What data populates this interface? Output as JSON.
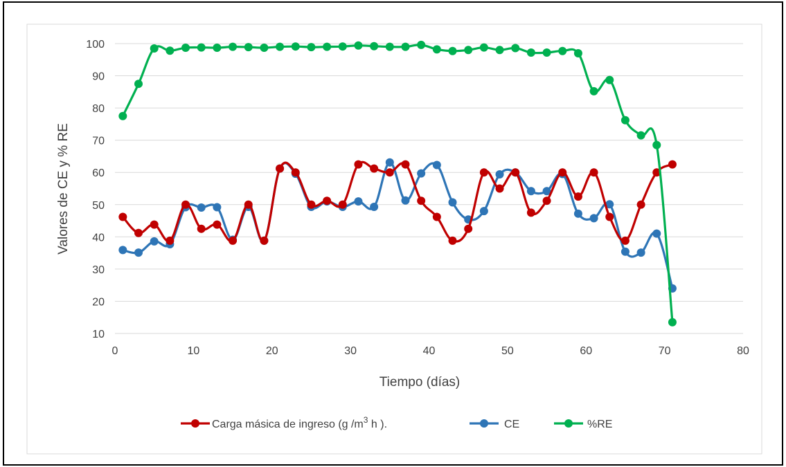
{
  "chart_data": {
    "type": "line",
    "title": "",
    "xlabel": "Tiempo (días)",
    "ylabel": "Valores de CE y % RE",
    "xlim": [
      0,
      80
    ],
    "ylim": [
      10,
      100
    ],
    "xticks": [
      0,
      10,
      20,
      30,
      40,
      50,
      60,
      70,
      80
    ],
    "yticks": [
      10,
      20,
      30,
      40,
      50,
      60,
      70,
      80,
      90,
      100
    ],
    "grid": "horizontal",
    "legend_position": "bottom",
    "series": [
      {
        "name": "Carga másica de ingreso (g /m3 h ).",
        "color": "#c00000",
        "x": [
          1,
          3,
          5,
          7,
          9,
          11,
          13,
          15,
          17,
          19,
          21,
          23,
          25,
          27,
          29,
          31,
          33,
          35,
          37,
          39,
          41,
          43,
          45,
          47,
          49,
          51,
          53,
          55,
          57,
          59,
          61,
          63,
          65,
          67,
          69,
          71
        ],
        "y": [
          46.2,
          41.2,
          43.8,
          38.8,
          50,
          42.5,
          43.8,
          38.8,
          50,
          38.8,
          61.2,
          60,
          50,
          51.2,
          50,
          62.5,
          61.2,
          60,
          62.5,
          51.2,
          46.2,
          38.8,
          42.5,
          60,
          55,
          60,
          47.5,
          51.2,
          60,
          52.5,
          60,
          46.2,
          38.8,
          50,
          60,
          62.5
        ]
      },
      {
        "name": "CE",
        "color": "#2e75b6",
        "x": [
          1,
          3,
          5,
          7,
          9,
          11,
          13,
          15,
          17,
          19,
          21,
          23,
          25,
          27,
          29,
          31,
          33,
          35,
          37,
          39,
          41,
          43,
          45,
          47,
          49,
          51,
          53,
          55,
          57,
          59,
          61,
          63,
          65,
          67,
          69,
          71
        ],
        "y": [
          35.9,
          35.1,
          38.6,
          37.7,
          49.2,
          49.1,
          49.2,
          39.1,
          49.3,
          38.8,
          61.2,
          59.6,
          49.3,
          51,
          49.3,
          51,
          49.3,
          63.1,
          51.3,
          59.7,
          62.3,
          50.7,
          45.4,
          48,
          59.4,
          60,
          54.2,
          54.2,
          59.5,
          47.2,
          45.8,
          50.1,
          35.4,
          35.1,
          41,
          24
        ]
      },
      {
        "name": "%RE",
        "color": "#00b050",
        "x": [
          1,
          3,
          5,
          7,
          9,
          11,
          13,
          15,
          17,
          19,
          21,
          23,
          25,
          27,
          29,
          31,
          33,
          35,
          37,
          39,
          41,
          43,
          45,
          47,
          49,
          51,
          53,
          55,
          57,
          59,
          61,
          63,
          65,
          67,
          69,
          71
        ],
        "y": [
          77.5,
          87.5,
          98.5,
          97.8,
          98.7,
          98.8,
          98.7,
          99,
          98.9,
          98.7,
          99,
          99.1,
          98.9,
          99,
          99.1,
          99.4,
          99.2,
          99,
          99,
          99.6,
          98.2,
          97.7,
          98,
          98.8,
          98,
          98.6,
          97.2,
          97.2,
          97.7,
          97,
          85.2,
          88.7,
          76.2,
          71.5,
          68.5,
          13.5
        ]
      }
    ]
  }
}
